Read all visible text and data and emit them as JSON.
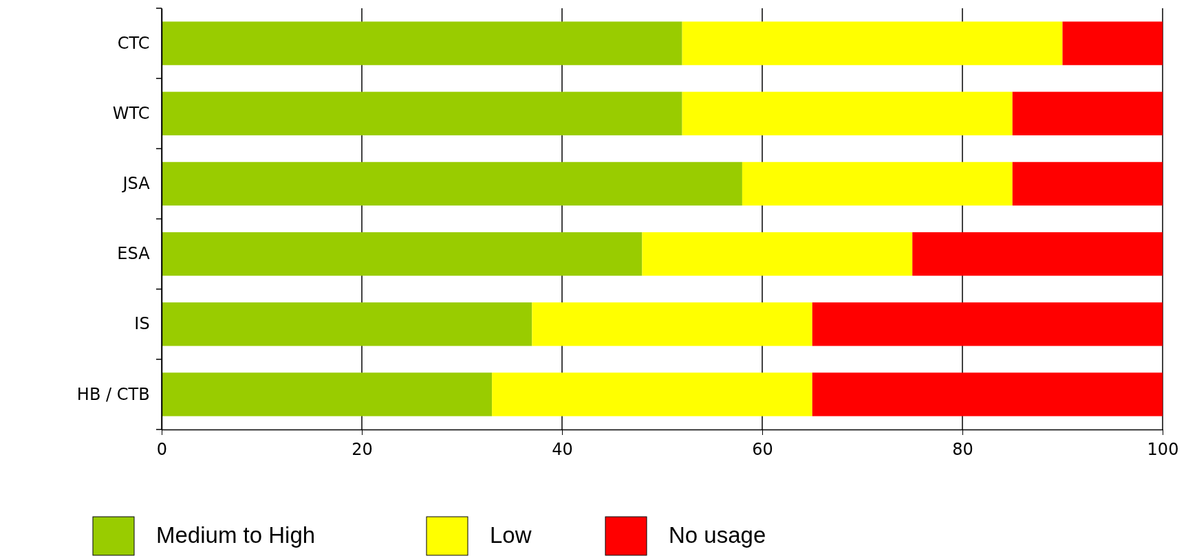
{
  "chart_data": {
    "type": "bar",
    "orientation": "horizontal",
    "stacked": true,
    "categories": [
      "CTC",
      "WTC",
      "JSA",
      "ESA",
      "IS",
      "HB / CTB"
    ],
    "series": [
      {
        "name": "Medium to High",
        "color": "#99cc00",
        "values": [
          52,
          52,
          58,
          48,
          37,
          33
        ]
      },
      {
        "name": "Low",
        "color": "#ffff00",
        "values": [
          38,
          33,
          27,
          27,
          28,
          32
        ]
      },
      {
        "name": "No usage",
        "color": "#ff0000",
        "values": [
          10,
          15,
          15,
          25,
          35,
          35
        ]
      }
    ],
    "xlim": [
      0,
      100
    ],
    "xticks": [
      0,
      20,
      40,
      60,
      80,
      100
    ],
    "grid": "x",
    "legend": "bottom"
  }
}
